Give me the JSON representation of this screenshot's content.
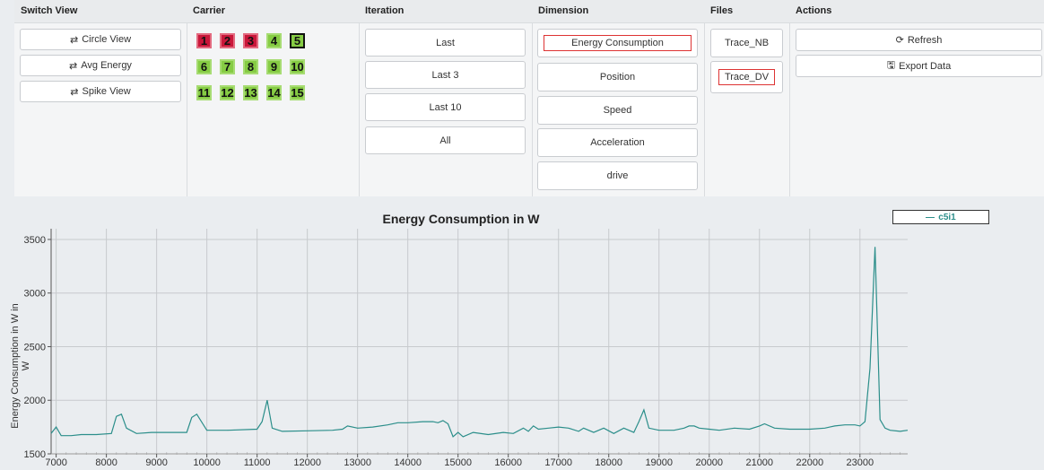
{
  "headers": {
    "switch_view": "Switch View",
    "carrier": "Carrier",
    "iteration": "Iteration",
    "dimension": "Dimension",
    "files": "Files",
    "actions": "Actions"
  },
  "switch_view": {
    "circle": "Circle View",
    "avg": "Avg Energy",
    "spike": "Spike View"
  },
  "carriers": [
    {
      "label": "1",
      "state": "red"
    },
    {
      "label": "2",
      "state": "red"
    },
    {
      "label": "3",
      "state": "red"
    },
    {
      "label": "4",
      "state": "green"
    },
    {
      "label": "5",
      "state": "selected"
    },
    {
      "label": "6",
      "state": "green"
    },
    {
      "label": "7",
      "state": "green"
    },
    {
      "label": "8",
      "state": "green"
    },
    {
      "label": "9",
      "state": "green"
    },
    {
      "label": "10",
      "state": "green"
    },
    {
      "label": "11",
      "state": "green"
    },
    {
      "label": "12",
      "state": "green"
    },
    {
      "label": "13",
      "state": "green"
    },
    {
      "label": "14",
      "state": "green"
    },
    {
      "label": "15",
      "state": "green"
    }
  ],
  "iteration": {
    "last": "Last",
    "last3": "Last 3",
    "last10": "Last 10",
    "all": "All"
  },
  "dimension": {
    "energy": "Energy Consumption",
    "position": "Position",
    "speed": "Speed",
    "acceleration": "Acceleration",
    "drive": "drive"
  },
  "files": {
    "trace_nb": "Trace_NB",
    "trace_dv": "Trace_DV"
  },
  "actions": {
    "refresh": "Refresh",
    "export": "Export Data"
  },
  "icons": {
    "switch": "swap-arrows-icon",
    "refresh": "refresh-icon",
    "export": "export-file-icon"
  },
  "colors": {
    "series": "#2b8e8a",
    "carrier_red": "#c9173a",
    "carrier_green": "#86cc44",
    "selected_outline": "#dd3333"
  },
  "chart_data": {
    "type": "line",
    "title": "Energy Consumption in W",
    "ylabel": "Energy Consumption in W in W",
    "xlabel": "",
    "xlim": [
      6900,
      23950
    ],
    "ylim": [
      1500,
      3600
    ],
    "xticks": [
      7000,
      8000,
      9000,
      10000,
      11000,
      12000,
      13000,
      14000,
      15000,
      16000,
      17000,
      18000,
      19000,
      20000,
      21000,
      22000,
      23000
    ],
    "yticks": [
      1500,
      2000,
      2500,
      3000,
      3500
    ],
    "grid": true,
    "legend": "top-right",
    "series": [
      {
        "name": "c5i1",
        "x": [
          6900,
          7000,
          7100,
          7300,
          7500,
          7800,
          8100,
          8200,
          8300,
          8400,
          8600,
          8900,
          9300,
          9600,
          9700,
          9800,
          10000,
          10400,
          11000,
          11100,
          11200,
          11300,
          11500,
          12000,
          12500,
          12700,
          12800,
          13000,
          13300,
          13600,
          13800,
          14000,
          14300,
          14500,
          14600,
          14700,
          14800,
          14900,
          15000,
          15100,
          15300,
          15600,
          15900,
          16100,
          16300,
          16400,
          16500,
          16600,
          16800,
          17000,
          17200,
          17400,
          17500,
          17700,
          17900,
          18100,
          18300,
          18500,
          18600,
          18700,
          18800,
          19000,
          19300,
          19500,
          19600,
          19700,
          19800,
          20000,
          20200,
          20500,
          20800,
          21000,
          21100,
          21300,
          21600,
          22000,
          22300,
          22400,
          22500,
          22700,
          22900,
          23000,
          23100,
          23200,
          23300,
          23400,
          23500,
          23600,
          23800,
          23950
        ],
        "values": [
          1690,
          1750,
          1670,
          1670,
          1680,
          1680,
          1690,
          1850,
          1870,
          1740,
          1690,
          1700,
          1700,
          1700,
          1840,
          1870,
          1720,
          1720,
          1730,
          1800,
          2000,
          1740,
          1710,
          1715,
          1720,
          1730,
          1760,
          1740,
          1750,
          1770,
          1790,
          1790,
          1800,
          1800,
          1790,
          1810,
          1780,
          1660,
          1700,
          1660,
          1700,
          1680,
          1700,
          1690,
          1740,
          1710,
          1760,
          1730,
          1740,
          1750,
          1740,
          1710,
          1740,
          1700,
          1740,
          1690,
          1740,
          1700,
          1800,
          1910,
          1740,
          1720,
          1720,
          1740,
          1760,
          1760,
          1740,
          1730,
          1720,
          1740,
          1730,
          1760,
          1780,
          1740,
          1730,
          1730,
          1740,
          1750,
          1760,
          1770,
          1770,
          1760,
          1800,
          2300,
          3430,
          1820,
          1740,
          1720,
          1710,
          1720
        ]
      }
    ]
  }
}
